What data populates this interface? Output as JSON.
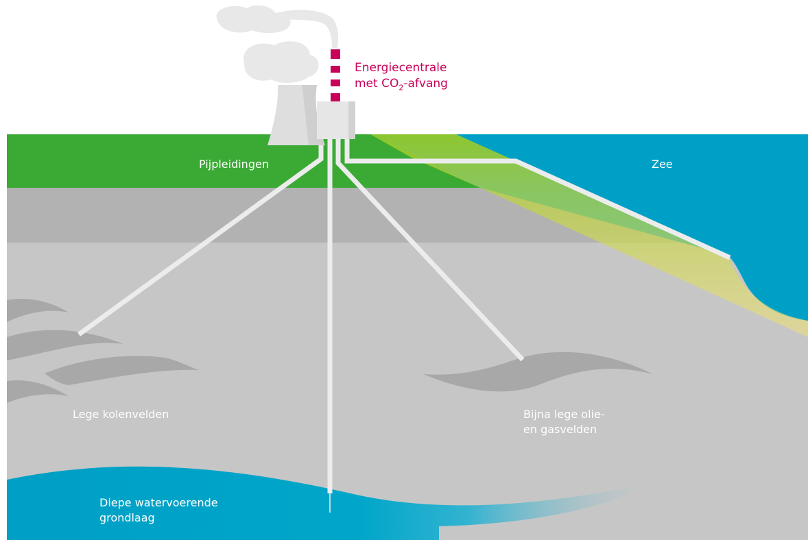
{
  "labels": {
    "plant_line1": "Energiecentrale",
    "plant_line2_pre": "met CO",
    "plant_line2_sub": "2",
    "plant_line2_post": "-afvang",
    "pipelines": "Pijpleidingen",
    "sea": "Zee",
    "coal": "Lege kolenvelden",
    "oilgas_line1": "Bijna lege olie-",
    "oilgas_line2": "en gasvelden",
    "aquifer_line1": "Diepe watervoerende",
    "aquifer_line2": "grondlaag"
  },
  "colors": {
    "land": "#3aaa35",
    "sea": "#00a0c6",
    "rock_upper": "#b2b2b2",
    "rock_lower": "#c6c6c6",
    "field": "#a8a8a8",
    "pipe": "#ececec",
    "chimney": "#c8005a",
    "smoke": "#e8e8e8",
    "aquifer": "#009fc6"
  }
}
